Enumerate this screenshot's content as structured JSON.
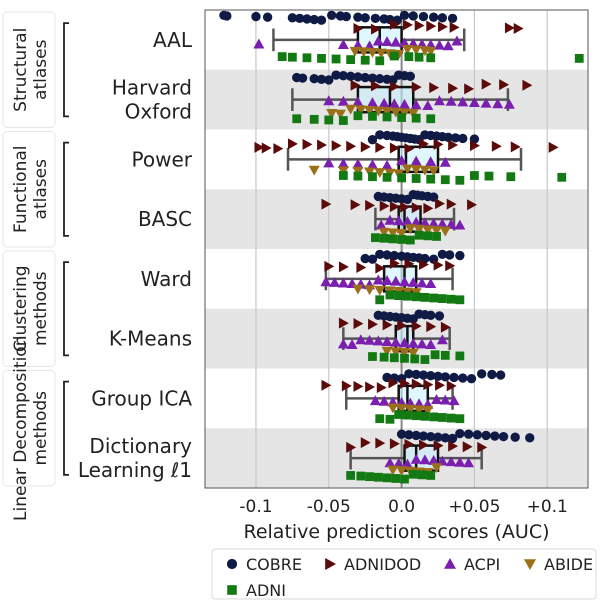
{
  "chart_data": {
    "type": "scatter",
    "subtype": "horizontal strip plot with box plots",
    "xlabel": "Relative prediction scores (AUC)",
    "xlim": [
      -0.135,
      0.128
    ],
    "x_ticks": [
      -0.1,
      -0.05,
      0.0,
      0.05,
      0.1
    ],
    "x_tick_labels": [
      "-0.1",
      "-0.05",
      "0.0",
      "+0.05",
      "+0.1"
    ],
    "grid": true,
    "legend_position": "bottom",
    "categories": [
      "AAL",
      "Harvard Oxford",
      "Power",
      "BASC",
      "Ward",
      "K-Means",
      "Group ICA",
      "Dictionary Learning ℓ1"
    ],
    "category_lines": [
      [
        "AAL"
      ],
      [
        "Harvard",
        "Oxford"
      ],
      [
        "Power"
      ],
      [
        "BASC"
      ],
      [
        "Ward"
      ],
      [
        "K-Means"
      ],
      [
        "Group ICA"
      ],
      [
        "Dictionary",
        "Learning ℓ1"
      ]
    ],
    "groups": [
      {
        "lines": [
          "Structural",
          "atlases"
        ],
        "categories": [
          0,
          1
        ]
      },
      {
        "lines": [
          "Functional",
          "atlases"
        ],
        "categories": [
          2,
          3
        ]
      },
      {
        "lines": [
          "Clustering",
          "methods"
        ],
        "categories": [
          4,
          5
        ]
      },
      {
        "lines": [
          "Linear Decomposition",
          "methods"
        ],
        "categories": [
          6,
          7
        ]
      }
    ],
    "boxes": [
      {
        "whislo": -0.088,
        "q1": -0.03,
        "med": -0.015,
        "q3": 0.0,
        "whishi": 0.043
      },
      {
        "whislo": -0.075,
        "q1": -0.03,
        "med": -0.008,
        "q3": 0.008,
        "whishi": 0.073
      },
      {
        "whislo": -0.078,
        "q1": -0.002,
        "med": 0.003,
        "q3": 0.025,
        "whishi": 0.082
      },
      {
        "whislo": -0.018,
        "q1": -0.002,
        "med": 0.002,
        "q3": 0.013,
        "whishi": 0.036
      },
      {
        "whislo": -0.052,
        "q1": -0.012,
        "med": 0.002,
        "q3": 0.01,
        "whishi": 0.035
      },
      {
        "whislo": -0.04,
        "q1": -0.004,
        "med": 0.004,
        "q3": 0.008,
        "whishi": 0.033
      },
      {
        "whislo": -0.038,
        "q1": -0.002,
        "med": 0.004,
        "q3": 0.018,
        "whishi": 0.035
      },
      {
        "whislo": -0.035,
        "q1": 0.002,
        "med": 0.01,
        "q3": 0.025,
        "whishi": 0.055
      }
    ],
    "series": [
      {
        "name": "COBRE",
        "marker": "circle",
        "color": "#0f1a45",
        "values": [
          [
            -0.122,
            -0.12,
            -0.1,
            -0.092,
            -0.075,
            -0.07,
            -0.065,
            -0.06,
            -0.055,
            -0.048,
            -0.042,
            -0.038,
            -0.03,
            -0.025,
            -0.018,
            -0.012,
            -0.008,
            -0.003,
            0.002,
            0.008,
            0.015,
            0.022,
            0.028,
            0.035
          ],
          [
            -0.072,
            -0.068,
            -0.06,
            -0.055,
            -0.05,
            -0.045,
            -0.04,
            -0.035,
            -0.03,
            -0.025,
            -0.02,
            -0.015,
            -0.01,
            -0.006,
            -0.002,
            0.002,
            0.006
          ],
          [
            -0.02,
            -0.015,
            -0.01,
            -0.006,
            -0.003,
            0.0,
            0.003,
            0.006,
            0.009,
            0.012,
            0.016,
            0.02,
            0.024,
            0.028,
            0.032,
            0.037,
            0.042,
            0.05
          ],
          [
            -0.016,
            -0.012,
            -0.008,
            -0.004,
            0.0,
            0.004,
            0.008,
            0.011,
            0.014,
            0.018,
            0.022
          ],
          [
            -0.025,
            -0.02,
            -0.015,
            -0.01,
            -0.005,
            0.0,
            0.004,
            0.008,
            0.012,
            0.016,
            0.022,
            0.028,
            0.033,
            0.04
          ],
          [
            -0.016,
            -0.012,
            -0.008,
            -0.004,
            0.0,
            0.004,
            0.008,
            0.012,
            0.016,
            0.02,
            0.026
          ],
          [
            -0.01,
            -0.005,
            0.0,
            0.005,
            0.01,
            0.015,
            0.02,
            0.025,
            0.03,
            0.036,
            0.042,
            0.048,
            0.055,
            0.062,
            0.068
          ],
          [
            0.0,
            0.005,
            0.01,
            0.015,
            0.02,
            0.025,
            0.03,
            0.035,
            0.04,
            0.046,
            0.052,
            0.058,
            0.064,
            0.07,
            0.078,
            0.088
          ]
        ]
      },
      {
        "name": "ADNIDOD",
        "marker": "triangle-right",
        "color": "#5c0b0b",
        "values": [
          [
            -0.03,
            -0.018,
            -0.005,
            0.004,
            0.012,
            0.02,
            0.028,
            0.036,
            0.074,
            0.08
          ],
          [
            -0.032,
            -0.018,
            -0.005,
            0.01,
            0.022,
            0.035,
            0.046,
            0.058,
            0.07,
            0.086
          ],
          [
            -0.098,
            -0.093,
            -0.085,
            -0.075,
            -0.065,
            -0.055,
            -0.045,
            -0.035,
            -0.025,
            -0.015,
            -0.005,
            0.005,
            0.015,
            0.025,
            0.035,
            0.05,
            0.065,
            0.078,
            0.104
          ],
          [
            -0.052,
            -0.032,
            -0.022,
            -0.012,
            -0.005,
            0.002,
            0.01,
            0.018,
            0.026,
            0.034,
            0.048
          ],
          [
            -0.05,
            -0.04,
            -0.028,
            -0.015,
            -0.005,
            0.005,
            0.015,
            0.025,
            0.033
          ],
          [
            -0.04,
            -0.03,
            -0.02,
            -0.01,
            0.0,
            0.01,
            0.02,
            0.03
          ],
          [
            -0.052,
            -0.038,
            -0.03,
            -0.022,
            -0.014,
            -0.006,
            0.002,
            0.01,
            0.018,
            0.026,
            0.034
          ],
          [
            -0.035,
            -0.025,
            -0.015,
            -0.005,
            0.005,
            0.015,
            0.025,
            0.035,
            0.045,
            0.055
          ]
        ]
      },
      {
        "name": "ACPI",
        "marker": "triangle-up",
        "color": "#7a1fb0",
        "values": [
          [
            -0.098,
            -0.04,
            -0.03,
            -0.022,
            -0.016,
            -0.01,
            -0.004,
            0.002,
            0.008,
            0.014,
            0.02,
            0.026,
            0.032,
            0.038
          ],
          [
            -0.05,
            -0.04,
            -0.03,
            -0.02,
            -0.012,
            -0.005,
            0.002,
            0.01,
            0.018,
            0.026,
            0.034,
            0.042,
            0.05,
            0.058,
            0.066,
            0.074
          ],
          [
            -0.05,
            -0.04,
            -0.03,
            -0.02,
            -0.01,
            0.0,
            0.01,
            0.02,
            0.03
          ],
          [
            -0.014,
            -0.008,
            -0.002,
            0.004,
            0.01,
            0.016,
            0.022,
            0.028,
            0.034,
            0.04
          ],
          [
            -0.052,
            -0.046,
            -0.04,
            -0.034,
            -0.028,
            -0.022,
            -0.016,
            -0.01,
            -0.004,
            0.002,
            0.008,
            0.014,
            0.02
          ],
          [
            -0.04,
            -0.034,
            -0.028,
            -0.022,
            -0.016,
            -0.01,
            -0.004,
            0.002,
            0.008,
            0.014,
            0.02,
            0.028
          ],
          [
            -0.018,
            -0.012,
            -0.006,
            0.0,
            0.006,
            0.012,
            0.018,
            0.024,
            0.03,
            0.036
          ],
          [
            -0.008,
            -0.002,
            0.004,
            0.01,
            0.016,
            0.022,
            0.028,
            0.034,
            0.04,
            0.046
          ]
        ]
      },
      {
        "name": "ABIDE",
        "marker": "triangle-down",
        "color": "#9c7018",
        "values": [
          [
            -0.032,
            -0.026,
            -0.02,
            -0.014,
            -0.008,
            -0.002,
            0.004,
            0.01,
            0.016,
            0.02
          ],
          [
            -0.048,
            -0.042,
            -0.035,
            -0.028,
            -0.022,
            -0.016,
            -0.01,
            -0.004,
            0.002,
            0.008
          ],
          [
            -0.06,
            -0.04,
            -0.03,
            -0.022,
            -0.015,
            -0.008,
            -0.002,
            0.004,
            0.01,
            0.016,
            0.022
          ],
          [
            -0.012,
            -0.006,
            0.0,
            0.006,
            0.012,
            0.018,
            0.024,
            0.03
          ],
          [
            -0.03,
            -0.022,
            -0.015,
            -0.008,
            -0.002,
            0.004,
            0.01
          ],
          [
            -0.01,
            -0.004,
            0.002,
            0.008
          ],
          [
            -0.006,
            0.0,
            0.006,
            0.012,
            0.018
          ],
          [
            -0.006,
            0.0,
            0.006,
            0.012,
            0.018,
            0.024
          ]
        ]
      },
      {
        "name": "ADNI",
        "marker": "square",
        "color": "#137a13",
        "values": [
          [
            -0.082,
            -0.075,
            -0.065,
            -0.055,
            -0.045,
            -0.035,
            -0.025,
            -0.015,
            -0.005,
            0.005,
            0.012,
            0.02,
            0.122
          ],
          [
            -0.072,
            -0.06,
            -0.05,
            -0.04,
            -0.03,
            -0.02,
            -0.01,
            0.0,
            0.01,
            0.02
          ],
          [
            -0.04,
            -0.03,
            -0.02,
            -0.01,
            0.0,
            0.01,
            0.02,
            0.03,
            0.04,
            0.05,
            0.06,
            0.075,
            0.11
          ],
          [
            -0.018,
            -0.012,
            -0.006,
            0.0,
            0.006,
            0.012,
            0.018,
            0.024
          ],
          [
            -0.015,
            -0.008,
            -0.002,
            0.004,
            0.01,
            0.016,
            0.022,
            0.028,
            0.034,
            0.04
          ],
          [
            -0.02,
            -0.012,
            -0.005,
            0.002,
            0.009,
            0.016,
            0.023,
            0.03,
            0.04
          ],
          [
            -0.015,
            -0.008,
            -0.002,
            0.004,
            0.01,
            0.016,
            0.022,
            0.028,
            0.034,
            0.04
          ],
          [
            -0.035,
            -0.028,
            -0.022,
            -0.016,
            -0.01,
            -0.004,
            0.002,
            0.008,
            0.014,
            0.02
          ]
        ]
      }
    ]
  }
}
